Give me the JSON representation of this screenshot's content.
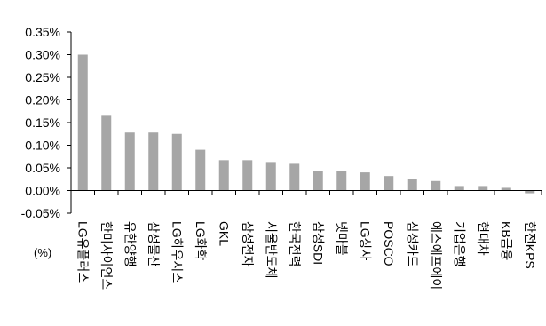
{
  "chart_data": {
    "type": "bar",
    "unit_label": "(%)",
    "categories": [
      "LG유플러스",
      "한미사이언스",
      "유한양행",
      "삼성물산",
      "LG하우시스",
      "LG화학",
      "GKL",
      "삼성전자",
      "서울반도체",
      "한국전력",
      "삼성SDI",
      "넷마블",
      "LG상사",
      "POSCO",
      "삼성카드",
      "에스에프에이",
      "기업은행",
      "현대차",
      "KB금융",
      "한전KPS"
    ],
    "values": [
      0.3,
      0.165,
      0.128,
      0.128,
      0.125,
      0.09,
      0.067,
      0.067,
      0.063,
      0.059,
      0.043,
      0.043,
      0.04,
      0.032,
      0.025,
      0.021,
      0.01,
      0.01,
      0.006,
      -0.006
    ],
    "yticks": [
      "0.35%",
      "0.30%",
      "0.25%",
      "0.20%",
      "0.15%",
      "0.10%",
      "0.05%",
      "0.00%",
      "-0.05%"
    ],
    "ylim": [
      -0.05,
      0.35
    ],
    "bar_color": "#a6a6a6",
    "axis_color": "#000000",
    "grid": false
  }
}
